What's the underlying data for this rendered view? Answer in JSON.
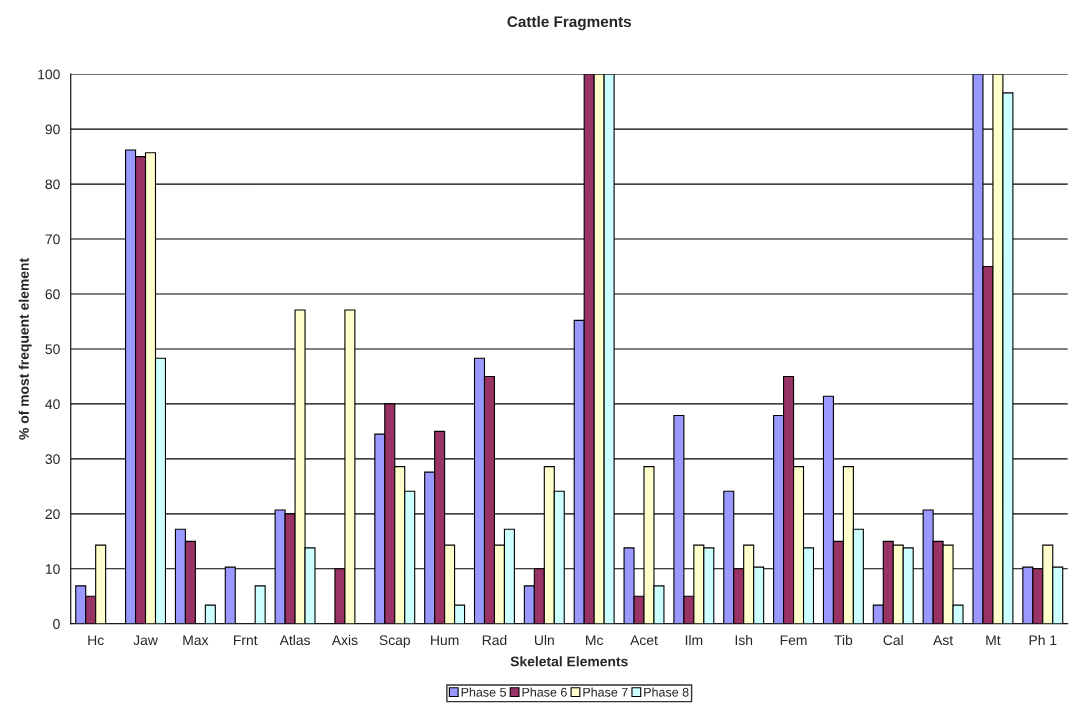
{
  "chart_data": {
    "type": "bar",
    "title": "Cattle Fragments",
    "xlabel": "Skeletal Elements",
    "ylabel": "% of most frequent element",
    "categories": [
      "Hc",
      "Jaw",
      "Max",
      "Frnt",
      "Atlas",
      "Axis",
      "Scap",
      "Hum",
      "Rad",
      "Uln",
      "Mc",
      "Acet",
      "Ilm",
      "Ish",
      "Fem",
      "Tib",
      "Cal",
      "Ast",
      "Mt",
      "Ph 1"
    ],
    "series": [
      {
        "name": "Phase 5",
        "color": "#9999ff",
        "values": [
          6.9,
          86.2,
          17.2,
          10.3,
          20.7,
          null,
          34.5,
          27.6,
          48.3,
          6.9,
          55.2,
          13.8,
          37.9,
          24.1,
          37.9,
          41.4,
          3.4,
          20.7,
          100,
          10.3
        ]
      },
      {
        "name": "Phase 6",
        "color": "#993366",
        "values": [
          5,
          85,
          15,
          null,
          20,
          10,
          40,
          35,
          45,
          10,
          100,
          5,
          5,
          10,
          45,
          15,
          15,
          15,
          65,
          10
        ]
      },
      {
        "name": "Phase 7",
        "color": "#ffffcc",
        "values": [
          14.3,
          85.7,
          null,
          null,
          57.1,
          57.1,
          28.6,
          14.3,
          14.3,
          28.6,
          100,
          28.6,
          14.3,
          14.3,
          28.6,
          28.6,
          14.3,
          14.3,
          100,
          14.3
        ]
      },
      {
        "name": "Phase 8",
        "color": "#ccffff",
        "values": [
          null,
          48.3,
          3.4,
          6.9,
          13.8,
          null,
          24.1,
          3.4,
          17.2,
          24.1,
          100,
          6.9,
          13.8,
          10.3,
          13.8,
          17.2,
          13.8,
          3.4,
          96.6,
          10.3
        ]
      }
    ],
    "ylim": [
      0,
      100
    ],
    "yticks": [
      0,
      10,
      20,
      30,
      40,
      50,
      60,
      70,
      80,
      90,
      100
    ],
    "grid": "y",
    "legend": "bottom"
  }
}
